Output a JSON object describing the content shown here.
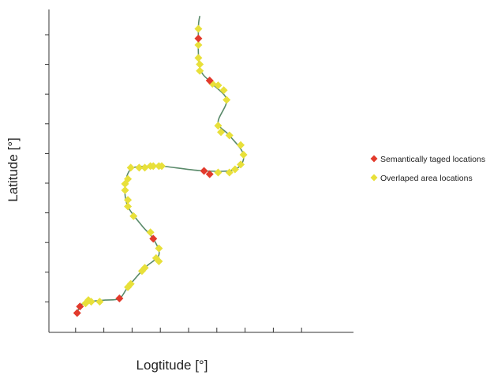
{
  "chart_data": {
    "type": "scatter",
    "xlabel": "Logtitude [°]",
    "ylabel": "Latitude [°]",
    "xlim": [
      0,
      10.8
    ],
    "ylim": [
      0,
      10
    ],
    "x_tick_count": 9,
    "y_tick_count": 10,
    "tick_labels_shown": false,
    "grid": false,
    "legend_position": "right",
    "path_color": "#5a8a6a",
    "series": [
      {
        "name": "Semantically taged locations",
        "color": "#e23a2c",
        "marker": "diamond",
        "points": [
          [
            1.0,
            0.6
          ],
          [
            1.1,
            0.8
          ],
          [
            2.5,
            1.05
          ],
          [
            3.7,
            2.9
          ],
          [
            5.3,
            9.1
          ],
          [
            5.7,
            7.8
          ],
          [
            5.5,
            5.0
          ],
          [
            5.7,
            4.9
          ]
        ]
      },
      {
        "name": "Overlaped area locations",
        "color": "#e8e03a",
        "marker": "diamond",
        "points": [
          [
            1.3,
            0.9
          ],
          [
            1.4,
            1.0
          ],
          [
            1.5,
            0.95
          ],
          [
            1.8,
            0.95
          ],
          [
            2.8,
            1.4
          ],
          [
            2.9,
            1.5
          ],
          [
            3.3,
            1.9
          ],
          [
            3.4,
            2.0
          ],
          [
            3.8,
            2.3
          ],
          [
            3.9,
            2.6
          ],
          [
            3.9,
            2.2
          ],
          [
            3.6,
            3.1
          ],
          [
            3.0,
            3.6
          ],
          [
            2.8,
            3.9
          ],
          [
            2.8,
            4.1
          ],
          [
            2.7,
            4.4
          ],
          [
            2.7,
            4.6
          ],
          [
            2.8,
            4.75
          ],
          [
            2.9,
            5.1
          ],
          [
            3.2,
            5.1
          ],
          [
            3.4,
            5.1
          ],
          [
            3.6,
            5.15
          ],
          [
            3.7,
            5.15
          ],
          [
            3.9,
            5.15
          ],
          [
            4.0,
            5.15
          ],
          [
            6.0,
            4.95
          ],
          [
            6.4,
            4.95
          ],
          [
            6.6,
            5.05
          ],
          [
            6.8,
            5.2
          ],
          [
            6.9,
            5.5
          ],
          [
            6.8,
            5.8
          ],
          [
            6.4,
            6.1
          ],
          [
            6.1,
            6.2
          ],
          [
            6.0,
            6.4
          ],
          [
            6.3,
            7.2
          ],
          [
            6.2,
            7.5
          ],
          [
            6.0,
            7.65
          ],
          [
            5.8,
            7.7
          ],
          [
            5.35,
            8.1
          ],
          [
            5.35,
            8.3
          ],
          [
            5.3,
            8.5
          ],
          [
            5.3,
            8.9
          ],
          [
            5.3,
            9.4
          ]
        ]
      }
    ],
    "path": [
      [
        1.0,
        0.6
      ],
      [
        1.1,
        0.8
      ],
      [
        1.3,
        0.95
      ],
      [
        1.6,
        0.97
      ],
      [
        2.0,
        1.0
      ],
      [
        2.5,
        1.05
      ],
      [
        2.8,
        1.4
      ],
      [
        3.4,
        2.0
      ],
      [
        3.9,
        2.4
      ],
      [
        3.7,
        2.9
      ],
      [
        3.3,
        3.3
      ],
      [
        2.8,
        3.9
      ],
      [
        2.7,
        4.5
      ],
      [
        2.9,
        5.05
      ],
      [
        3.5,
        5.15
      ],
      [
        4.0,
        5.15
      ],
      [
        5.5,
        5.0
      ],
      [
        6.6,
        5.05
      ],
      [
        6.9,
        5.5
      ],
      [
        6.4,
        6.1
      ],
      [
        6.0,
        6.5
      ],
      [
        6.3,
        7.2
      ],
      [
        5.8,
        7.7
      ],
      [
        5.35,
        8.2
      ],
      [
        5.3,
        9.4
      ],
      [
        5.35,
        9.8
      ]
    ]
  }
}
